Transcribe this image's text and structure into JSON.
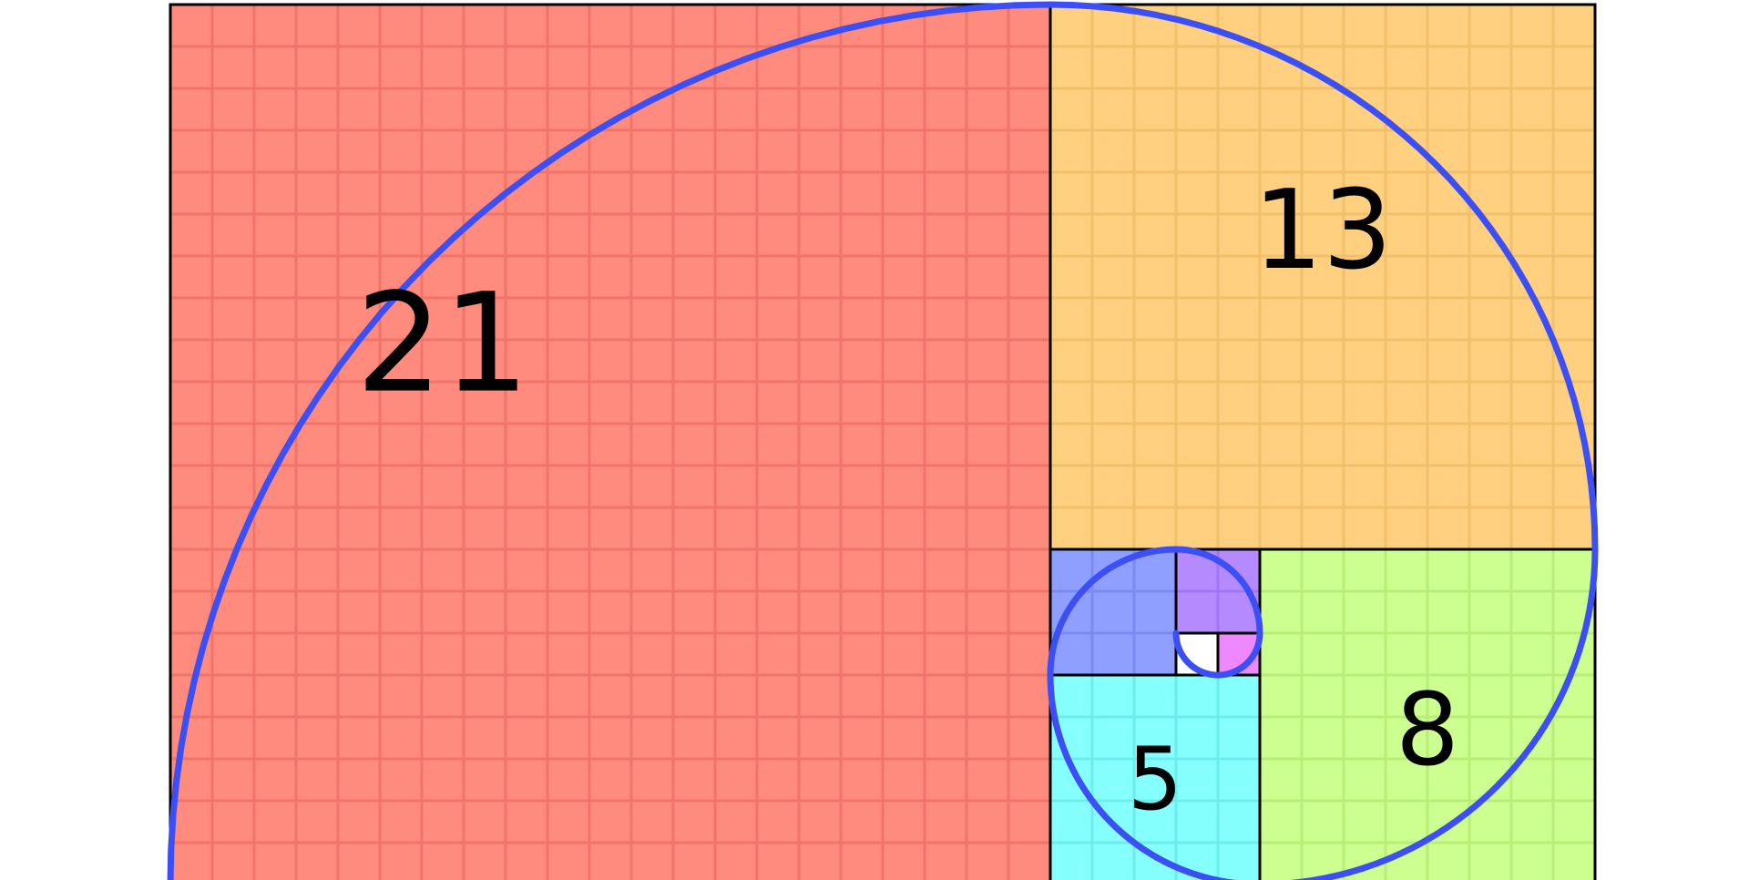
{
  "diagram": {
    "unit_grid": true,
    "colors": {
      "background": "#ffffff",
      "border": "#000000",
      "spiral": "#3b4ff5"
    },
    "squares": [
      {
        "id": "sq-21",
        "size": 21,
        "label": "21",
        "fill": "#ff8a7e",
        "grid_color": "#f07468"
      },
      {
        "id": "sq-13",
        "size": 13,
        "label": "13",
        "fill": "#ffd080",
        "grid_color": "#f2bf6a"
      },
      {
        "id": "sq-8",
        "size": 8,
        "label": "8",
        "fill": "#ccff8f",
        "grid_color": "#b8ee78"
      },
      {
        "id": "sq-5",
        "size": 5,
        "label": "5",
        "fill": "#86ffff",
        "grid_color": "#6cecec"
      },
      {
        "id": "sq-3",
        "size": 3,
        "label": "",
        "fill": "#8f9fff",
        "grid_color": "#7a8af0"
      },
      {
        "id": "sq-2",
        "size": 2,
        "label": "",
        "fill": "#b58aff",
        "grid_color": "#a276f2"
      },
      {
        "id": "sq-1a",
        "size": 1,
        "label": "",
        "fill": "#ee88ff",
        "grid_color": "#dd74ef"
      },
      {
        "id": "sq-1b",
        "size": 1,
        "label": "",
        "fill": "#ffffff",
        "grid_color": "#ffffff"
      }
    ]
  }
}
